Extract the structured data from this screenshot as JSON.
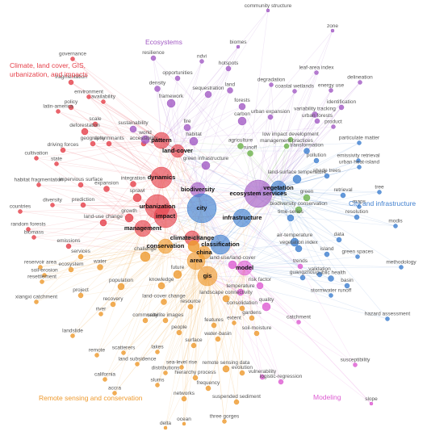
{
  "clusters": [
    {
      "title": "Climate, land cover, GIS, urbanization, and impacts",
      "color": "#e5404a"
    },
    {
      "title": "Ecosystems",
      "color": "#a25bc4"
    },
    {
      "title": "City and infrastructure",
      "color": "#3f7fcf"
    },
    {
      "color": "#6cb14a"
    },
    {
      "title": "Remote sensing and conservation",
      "color": "#ee9a2e"
    },
    {
      "title": "Modeling",
      "color": "#dd5cd2"
    }
  ],
  "nodes": [
    {
      "label": "governance",
      "cluster": 0
    },
    {
      "label": "fragmentation",
      "cluster": 0
    },
    {
      "label": "environment",
      "cluster": 0
    },
    {
      "label": "availability",
      "cluster": 0
    },
    {
      "label": "latin-america",
      "cluster": 0
    },
    {
      "label": "policy",
      "cluster": 0
    },
    {
      "label": "scale",
      "cluster": 0
    },
    {
      "label": "deforestation",
      "cluster": 0
    },
    {
      "label": "geography",
      "cluster": 0
    },
    {
      "label": "driving forces",
      "cluster": 0
    },
    {
      "label": "cultivation",
      "cluster": 0
    },
    {
      "label": "state",
      "cluster": 0
    },
    {
      "label": "determinants",
      "cluster": 0
    },
    {
      "label": "accessibility",
      "cluster": 0
    },
    {
      "label": "habitat fragmentation",
      "cluster": 0
    },
    {
      "label": "impervious surface",
      "cluster": 0
    },
    {
      "label": "expansion",
      "cluster": 0
    },
    {
      "label": "integration",
      "cluster": 0
    },
    {
      "label": "countries",
      "cluster": 0
    },
    {
      "label": "diversity",
      "cluster": 0
    },
    {
      "label": "prediction",
      "cluster": 0
    },
    {
      "label": "land-use change",
      "cluster": 0
    },
    {
      "label": "random forests",
      "cluster": 0
    },
    {
      "label": "biomass",
      "cluster": 0
    },
    {
      "label": "emissions",
      "cluster": 0
    },
    {
      "label": "pattern",
      "cluster": 0
    },
    {
      "label": "land-cover",
      "cluster": 0
    },
    {
      "label": "dynamics",
      "cluster": 0
    },
    {
      "label": "urbanization",
      "cluster": 0
    },
    {
      "label": "impact",
      "cluster": 0
    },
    {
      "label": "management",
      "cluster": 0
    },
    {
      "label": "climate-change",
      "cluster": 0
    },
    {
      "label": "growth",
      "cluster": 0
    },
    {
      "label": "sprawl",
      "cluster": 0
    },
    {
      "label": "community structure",
      "cluster": 1
    },
    {
      "label": "zone",
      "cluster": 1
    },
    {
      "label": "biomes",
      "cluster": 1
    },
    {
      "label": "resilience",
      "cluster": 1
    },
    {
      "label": "ndvi",
      "cluster": 1
    },
    {
      "label": "hotspots",
      "cluster": 1
    },
    {
      "label": "opportunities",
      "cluster": 1
    },
    {
      "label": "density",
      "cluster": 1
    },
    {
      "label": "sequestration",
      "cluster": 1
    },
    {
      "label": "land",
      "cluster": 1
    },
    {
      "label": "framework",
      "cluster": 1
    },
    {
      "label": "forests",
      "cluster": 1
    },
    {
      "label": "sustainability",
      "cluster": 1
    },
    {
      "label": "carbon",
      "cluster": 1
    },
    {
      "label": "fire",
      "cluster": 1
    },
    {
      "label": "world",
      "cluster": 1
    },
    {
      "label": "habitat",
      "cluster": 1
    },
    {
      "label": "green infrastructure",
      "cluster": 1
    },
    {
      "label": "biodiversity",
      "cluster": 1
    },
    {
      "label": "ecosystem services",
      "cluster": 1
    },
    {
      "label": "leaf-area index",
      "cluster": 1
    },
    {
      "label": "degradation",
      "cluster": 1
    },
    {
      "label": "coastal wetlands",
      "cluster": 1
    },
    {
      "label": "energy use",
      "cluster": 1
    },
    {
      "label": "delineation",
      "cluster": 1
    },
    {
      "label": "identification",
      "cluster": 1
    },
    {
      "label": "urban expansion",
      "cluster": 1
    },
    {
      "label": "variability tracking",
      "cluster": 1
    },
    {
      "label": "urban forests",
      "cluster": 1
    },
    {
      "label": "product",
      "cluster": 1
    },
    {
      "label": "city",
      "cluster": 2
    },
    {
      "label": "infrastructure",
      "cluster": 2
    },
    {
      "label": "vegetation",
      "cluster": 2
    },
    {
      "label": "classification",
      "cluster": 2
    },
    {
      "label": "particulate matter",
      "cluster": 2
    },
    {
      "label": "emissivity retrieval",
      "cluster": 2
    },
    {
      "label": "urban heat-island",
      "cluster": 2
    },
    {
      "label": "shade trees",
      "cluster": 2
    },
    {
      "label": "tree",
      "cluster": 2
    },
    {
      "label": "maps",
      "cluster": 2
    },
    {
      "label": "resolution",
      "cluster": 2
    },
    {
      "label": "air-temperature",
      "cluster": 2
    },
    {
      "label": "data",
      "cluster": 2
    },
    {
      "label": "island",
      "cluster": 2
    },
    {
      "label": "green spaces",
      "cluster": 2
    },
    {
      "label": "retrieval",
      "cluster": 2
    },
    {
      "label": "land-surface temperature",
      "cluster": 2
    },
    {
      "label": "pollution",
      "cluster": 2
    },
    {
      "label": "vegetation index",
      "cluster": 2
    },
    {
      "label": "guangzhou",
      "cluster": 2
    },
    {
      "label": "public health",
      "cluster": 2
    },
    {
      "label": "validation",
      "cluster": 2
    },
    {
      "label": "basin",
      "cluster": 2
    },
    {
      "label": "stormwater runoff",
      "cluster": 2
    },
    {
      "label": "transformation",
      "cluster": 2
    },
    {
      "label": "time-series",
      "cluster": 2
    },
    {
      "label": "modis",
      "cluster": 2
    },
    {
      "label": "methodology",
      "cluster": 2
    },
    {
      "label": "hazard assessment",
      "cluster": 2
    },
    {
      "label": "low impact development",
      "cluster": 3
    },
    {
      "label": "management practices",
      "cluster": 3
    },
    {
      "label": "agriculture",
      "cluster": 3
    },
    {
      "label": "green",
      "cluster": 3
    },
    {
      "label": "biodiversity conservation",
      "cluster": 3
    },
    {
      "label": "runoff",
      "cluster": 3
    },
    {
      "label": "conservation",
      "cluster": 4
    },
    {
      "label": "area",
      "cluster": 4
    },
    {
      "label": "gis",
      "cluster": 4
    },
    {
      "label": "china",
      "cluster": 4
    },
    {
      "label": "benefits",
      "cluster": 4
    },
    {
      "label": "challenge",
      "cluster": 4
    },
    {
      "label": "services",
      "cluster": 4
    },
    {
      "label": "water",
      "cluster": 4
    },
    {
      "label": "reservoir area",
      "cluster": 4
    },
    {
      "label": "ecosystem",
      "cluster": 4
    },
    {
      "label": "soil-erosion",
      "cluster": 4
    },
    {
      "label": "resettlement",
      "cluster": 4
    },
    {
      "label": "future",
      "cluster": 4
    },
    {
      "label": "knowledge",
      "cluster": 4
    },
    {
      "label": "population",
      "cluster": 4
    },
    {
      "label": "xiangxi catchment",
      "cluster": 4
    },
    {
      "label": "project",
      "cluster": 4
    },
    {
      "label": "recovery",
      "cluster": 4
    },
    {
      "label": "land-cover change",
      "cluster": 4
    },
    {
      "label": "resource",
      "cluster": 4
    },
    {
      "label": "landscape connectivity",
      "cluster": 4
    },
    {
      "label": "consolidation",
      "cluster": 4
    },
    {
      "label": "gardens",
      "cluster": 4
    },
    {
      "label": "extent",
      "cluster": 4
    },
    {
      "label": "river",
      "cluster": 4
    },
    {
      "label": "landslide",
      "cluster": 4
    },
    {
      "label": "community",
      "cluster": 4
    },
    {
      "label": "satellite images",
      "cluster": 4
    },
    {
      "label": "features",
      "cluster": 4
    },
    {
      "label": "people",
      "cluster": 4
    },
    {
      "label": "soil-moisture",
      "cluster": 4
    },
    {
      "label": "surface",
      "cluster": 4
    },
    {
      "label": "water-basin",
      "cluster": 4
    },
    {
      "label": "lakes",
      "cluster": 4
    },
    {
      "label": "scatterers",
      "cluster": 4
    },
    {
      "label": "remote",
      "cluster": 4
    },
    {
      "label": "land subsidence",
      "cluster": 4
    },
    {
      "label": "sea-level rise",
      "cluster": 4
    },
    {
      "label": "remote sensing data",
      "cluster": 4
    },
    {
      "label": "distributions",
      "cluster": 4
    },
    {
      "label": "evolution",
      "cluster": 4
    },
    {
      "label": "california",
      "cluster": 4
    },
    {
      "label": "slums",
      "cluster": 4
    },
    {
      "label": "hierarchy process",
      "cluster": 4
    },
    {
      "label": "frequency",
      "cluster": 4
    },
    {
      "label": "accra",
      "cluster": 4
    },
    {
      "label": "networks",
      "cluster": 4
    },
    {
      "label": "suspended sediment",
      "cluster": 4
    },
    {
      "label": "ocean",
      "cluster": 4
    },
    {
      "label": "delta",
      "cluster": 4
    },
    {
      "label": "three gorges",
      "cluster": 4
    },
    {
      "label": "model",
      "cluster": 5
    },
    {
      "label": "quality",
      "cluster": 5
    },
    {
      "label": "risk factor",
      "cluster": 5
    },
    {
      "label": "trends",
      "cluster": 5
    },
    {
      "label": "temperature",
      "cluster": 5
    },
    {
      "label": "vulnerability",
      "cluster": 5
    },
    {
      "label": "logistic-regression",
      "cluster": 5
    },
    {
      "label": "catchment",
      "cluster": 5
    },
    {
      "label": "susceptibility",
      "cluster": 5
    },
    {
      "label": "slope",
      "cluster": 5
    },
    {
      "label": "land-use/land-cover",
      "cluster": 5
    }
  ]
}
